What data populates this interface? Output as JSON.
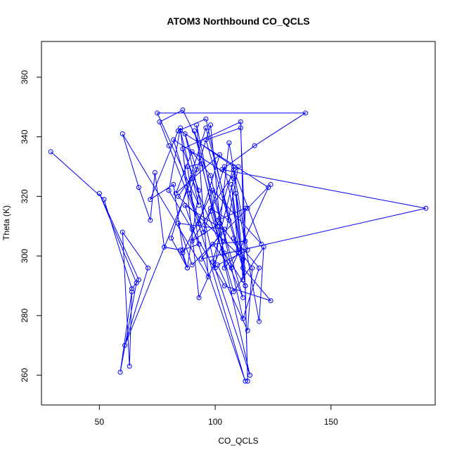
{
  "chart_data": {
    "type": "scatter",
    "title": "ATOM3 Northbound CO_QCLS",
    "xlabel": "CO_QCLS",
    "ylabel": "Theta (K)",
    "xlim": [
      25,
      195
    ],
    "ylim": [
      250,
      372
    ],
    "xticks": [
      50,
      100,
      150
    ],
    "yticks": [
      260,
      280,
      300,
      320,
      340,
      360
    ],
    "grid": false,
    "legend": "none",
    "colors": {
      "series": "#0000ff",
      "frame": "#000000",
      "text": "#000000"
    },
    "series": [
      {
        "style": "line+points",
        "x": [
          29,
          52,
          64,
          67,
          50,
          66,
          59,
          64,
          63,
          60,
          71,
          61,
          90,
          112,
          91,
          115,
          99,
          108,
          82,
          113,
          87,
          101,
          92,
          97,
          60,
          67,
          72,
          74,
          78,
          85,
          88,
          81,
          96,
          110,
          107,
          113,
          104,
          94,
          88,
          93,
          86,
          82,
          72,
          84,
          96,
          106,
          98,
          110,
          104,
          93,
          85,
          80,
          90,
          104,
          124,
          112,
          108,
          119,
          112,
          98,
          90,
          83,
          102,
          93,
          80,
          76,
          86,
          93,
          108,
          101,
          113,
          112,
          108,
          120,
          99,
          86,
          88,
          93,
          86,
          111,
          114,
          113,
          109,
          119,
          121,
          108,
          98,
          90,
          102,
          116,
          114,
          101,
          114,
          106,
          100,
          87,
          92,
          84,
          112,
          104,
          95,
          89,
          98,
          104,
          110,
          96,
          111,
          113,
          99,
          107,
          123,
          85,
          93,
          75,
          139,
          117,
          103,
          191,
          94,
          104,
          84,
          90,
          114,
          124
        ],
        "y": [
          335,
          319,
          289,
          292,
          321,
          291,
          261,
          288,
          263,
          308,
          296,
          270,
          326,
          286,
          342,
          260,
          298,
          326,
          339,
          258,
          317,
          310,
          344,
          293,
          341,
          323,
          312,
          328,
          303,
          302,
          296,
          306,
          343,
          302,
          324,
          290,
          301,
          331,
          330,
          304,
          302,
          324,
          319,
          342,
          346,
          312,
          316,
          330,
          305,
          286,
          343,
          322,
          309,
          290,
          285,
          296,
          306,
          296,
          279,
          327,
          335,
          321,
          334,
          311,
          337,
          345,
          349,
          338,
          330,
          312,
          316,
          292,
          329,
          304,
          322,
          301,
          296,
          322,
          336,
          345,
          258,
          290,
          321,
          278,
          303,
          288,
          315,
          305,
          311,
          296,
          275,
          297,
          302,
          338,
          296,
          341,
          329,
          320,
          299,
          330,
          308,
          321,
          344,
          296,
          301,
          339,
          343,
          305,
          304,
          296,
          323,
          342,
          317,
          348,
          348,
          337,
          329,
          316,
          299,
          309,
          311,
          297,
          316,
          324
        ]
      }
    ]
  }
}
